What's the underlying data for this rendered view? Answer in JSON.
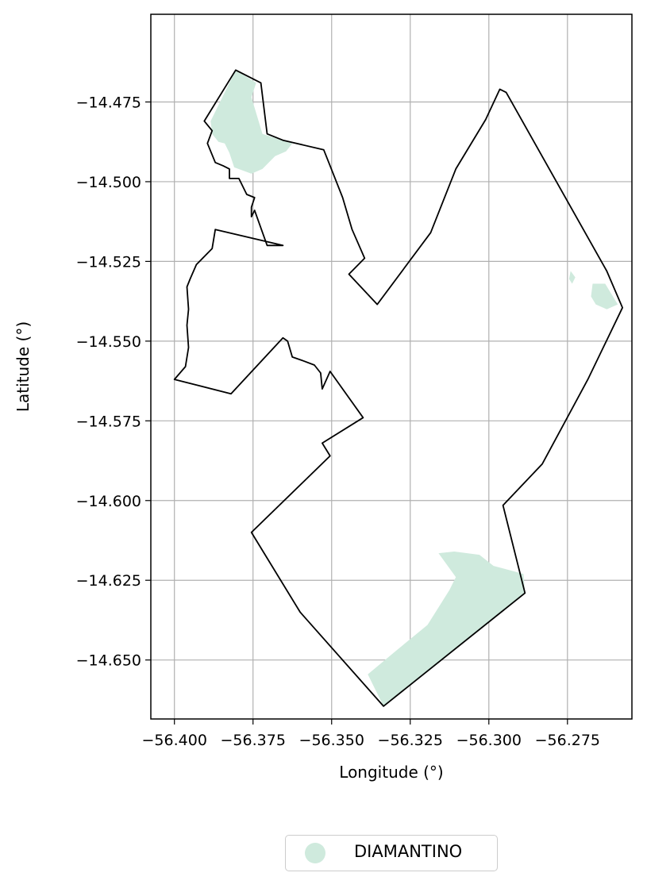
{
  "chart_data": {
    "type": "map",
    "title": "",
    "xlabel": "Longitude (°)",
    "ylabel": "Latitude (°)",
    "xlim": [
      -56.4075,
      -56.2545
    ],
    "ylim": [
      -14.6685,
      -14.4475
    ],
    "xticks": [
      -56.4,
      -56.375,
      -56.35,
      -56.325,
      -56.3,
      -56.275
    ],
    "xtick_labels": [
      "−56.400",
      "−56.375",
      "−56.350",
      "−56.325",
      "−56.300",
      "−56.275"
    ],
    "yticks": [
      -14.475,
      -14.5,
      -14.525,
      -14.55,
      -14.575,
      -14.6,
      -14.625,
      -14.65
    ],
    "ytick_labels": [
      "−14.475",
      "−14.500",
      "−14.525",
      "−14.550",
      "−14.575",
      "−14.600",
      "−14.625",
      "−14.650"
    ],
    "grid": true,
    "legend": {
      "placement": "bottom-center",
      "entries": [
        {
          "name": "DIAMANTINO",
          "color": "#cfeadd"
        }
      ]
    },
    "boundary": {
      "stroke": "#000000",
      "points": [
        [
          -56.3805,
          -14.465
        ],
        [
          -56.3725,
          -14.469
        ],
        [
          -56.3705,
          -14.485
        ],
        [
          -56.3655,
          -14.487
        ],
        [
          -56.3525,
          -14.49
        ],
        [
          -56.3505,
          -14.495
        ],
        [
          -56.3465,
          -14.505
        ],
        [
          -56.3435,
          -14.515
        ],
        [
          -56.3395,
          -14.524
        ],
        [
          -56.3445,
          -14.529
        ],
        [
          -56.3355,
          -14.5385
        ],
        [
          -56.3185,
          -14.516
        ],
        [
          -56.3105,
          -14.496
        ],
        [
          -56.301,
          -14.4805
        ],
        [
          -56.2965,
          -14.471
        ],
        [
          -56.2945,
          -14.472
        ],
        [
          -56.2825,
          -14.493
        ],
        [
          -56.2705,
          -14.514
        ],
        [
          -56.2625,
          -14.528
        ],
        [
          -56.2575,
          -14.5395
        ],
        [
          -56.2685,
          -14.562
        ],
        [
          -56.283,
          -14.5885
        ],
        [
          -56.2955,
          -14.6015
        ],
        [
          -56.2885,
          -14.629
        ],
        [
          -56.3335,
          -14.6645
        ],
        [
          -56.36,
          -14.635
        ],
        [
          -56.3755,
          -14.61
        ],
        [
          -56.3505,
          -14.586
        ],
        [
          -56.353,
          -14.582
        ],
        [
          -56.34,
          -14.574
        ],
        [
          -56.3505,
          -14.5595
        ],
        [
          -56.353,
          -14.565
        ],
        [
          -56.3535,
          -14.56
        ],
        [
          -56.3555,
          -14.5575
        ],
        [
          -56.3595,
          -14.556
        ],
        [
          -56.3625,
          -14.555
        ],
        [
          -56.364,
          -14.55
        ],
        [
          -56.3655,
          -14.549
        ],
        [
          -56.382,
          -14.5665
        ],
        [
          -56.4,
          -14.562
        ],
        [
          -56.3965,
          -14.558
        ],
        [
          -56.3955,
          -14.552
        ],
        [
          -56.396,
          -14.545
        ],
        [
          -56.3955,
          -14.54
        ],
        [
          -56.396,
          -14.533
        ],
        [
          -56.395,
          -14.5305
        ],
        [
          -56.393,
          -14.526
        ],
        [
          -56.388,
          -14.521
        ],
        [
          -56.387,
          -14.515
        ],
        [
          -56.3655,
          -14.52
        ],
        [
          -56.3705,
          -14.52
        ],
        [
          -56.3745,
          -14.509
        ],
        [
          -56.3755,
          -14.511
        ],
        [
          -56.3755,
          -14.508
        ],
        [
          -56.3745,
          -14.505
        ],
        [
          -56.377,
          -14.504
        ],
        [
          -56.3795,
          -14.499
        ],
        [
          -56.3825,
          -14.499
        ],
        [
          -56.3825,
          -14.496
        ],
        [
          -56.3845,
          -14.495
        ],
        [
          -56.387,
          -14.494
        ],
        [
          -56.3895,
          -14.488
        ],
        [
          -56.388,
          -14.484
        ],
        [
          -56.3905,
          -14.481
        ]
      ]
    },
    "regions": [
      {
        "name": "DIAMANTINO",
        "color": "#cfeadd",
        "polygons": [
          [
            [
              -56.3805,
              -14.465
            ],
            [
              -56.374,
              -14.469
            ],
            [
              -56.3755,
              -14.4735
            ],
            [
              -56.372,
              -14.485
            ],
            [
              -56.3625,
              -14.488
            ],
            [
              -56.3645,
              -14.4905
            ],
            [
              -56.368,
              -14.492
            ],
            [
              -56.372,
              -14.496
            ],
            [
              -56.3755,
              -14.4975
            ],
            [
              -56.381,
              -14.4955
            ],
            [
              -56.3825,
              -14.491
            ],
            [
              -56.384,
              -14.488
            ],
            [
              -56.386,
              -14.4875
            ],
            [
              -56.388,
              -14.485
            ],
            [
              -56.3885,
              -14.481
            ],
            [
              -56.3845,
              -14.473
            ]
          ],
          [
            [
              -56.316,
              -14.6165
            ],
            [
              -56.311,
              -14.616
            ],
            [
              -56.303,
              -14.617
            ],
            [
              -56.2985,
              -14.6205
            ],
            [
              -56.289,
              -14.623
            ],
            [
              -56.2885,
              -14.629
            ],
            [
              -56.3335,
              -14.6645
            ],
            [
              -56.3385,
              -14.6545
            ],
            [
              -56.33,
              -14.6475
            ],
            [
              -56.3195,
              -14.639
            ],
            [
              -56.3125,
              -14.628
            ],
            [
              -56.3105,
              -14.624
            ]
          ],
          [
            [
              -56.267,
              -14.532
            ],
            [
              -56.263,
              -14.532
            ],
            [
              -56.259,
              -14.5385
            ],
            [
              -56.2625,
              -14.54
            ],
            [
              -56.266,
              -14.5385
            ],
            [
              -56.2675,
              -14.536
            ]
          ],
          [
            [
              -56.274,
              -14.528
            ],
            [
              -56.2725,
              -14.53
            ],
            [
              -56.2735,
              -14.532
            ],
            [
              -56.2745,
              -14.5305
            ]
          ]
        ]
      }
    ]
  }
}
